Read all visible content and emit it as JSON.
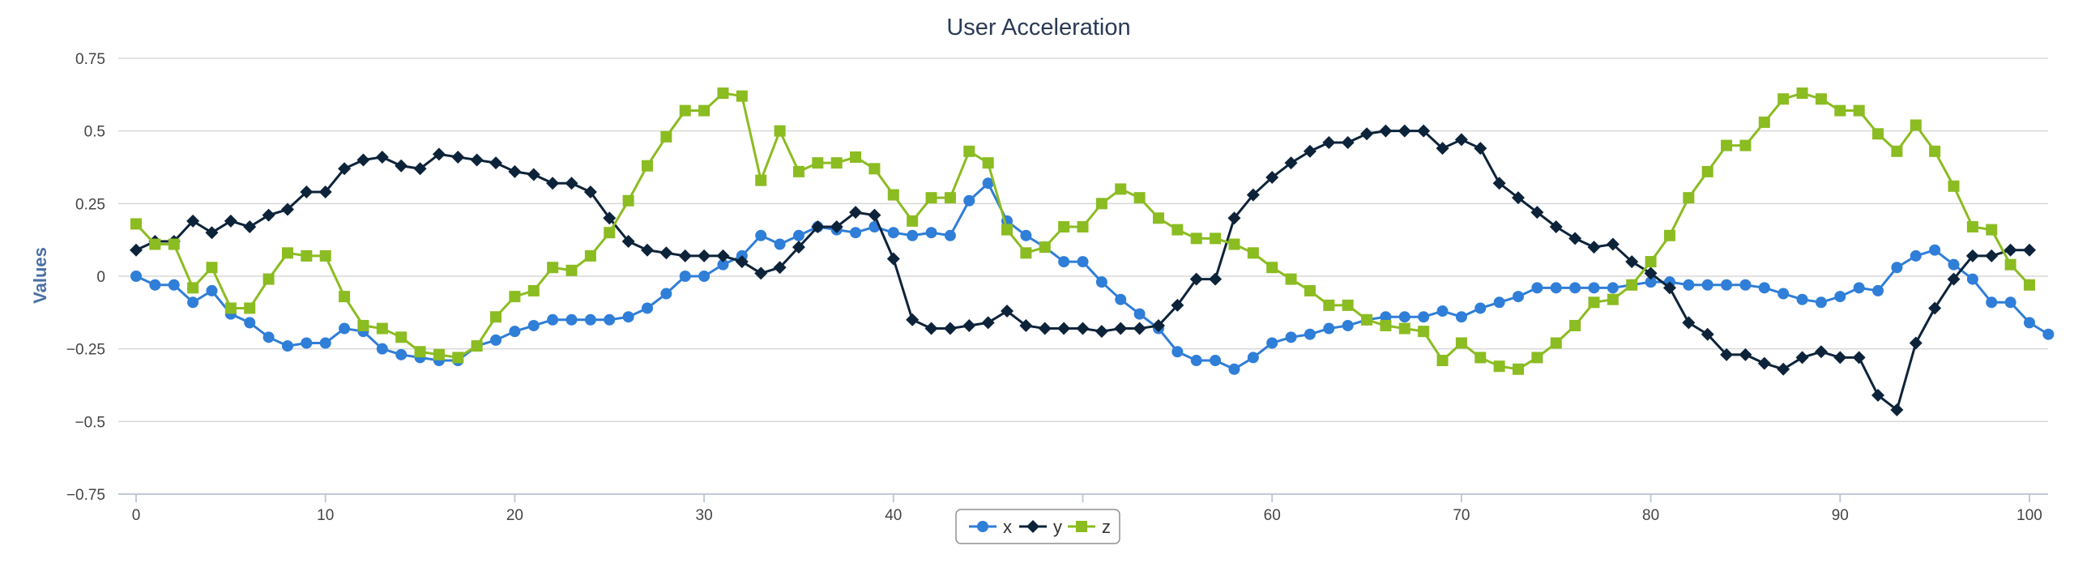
{
  "chart_data": {
    "type": "line",
    "title": "User Acceleration",
    "xlabel": "",
    "ylabel": "Values",
    "xlim": [
      0,
      100
    ],
    "ylim": [
      -0.75,
      0.75
    ],
    "x_ticks": [
      0,
      10,
      20,
      30,
      40,
      50,
      60,
      70,
      80,
      90,
      100
    ],
    "y_ticks": [
      -0.75,
      -0.5,
      -0.25,
      0,
      0.25,
      0.5,
      0.75
    ],
    "y_tick_labels": [
      "−0.75",
      "−0.5",
      "−0.25",
      "0",
      "0.25",
      "0.5",
      "0.75"
    ],
    "grid": "horizontal",
    "legend_position": "bottom-center",
    "series": [
      {
        "name": "x",
        "color": "#2f7ed8",
        "marker": "circle",
        "values": [
          0.0,
          -0.03,
          -0.03,
          -0.09,
          -0.05,
          -0.13,
          -0.16,
          -0.21,
          -0.24,
          -0.23,
          -0.23,
          -0.18,
          -0.19,
          -0.25,
          -0.27,
          -0.28,
          -0.29,
          -0.29,
          -0.24,
          -0.22,
          -0.19,
          -0.17,
          -0.15,
          -0.15,
          -0.15,
          -0.15,
          -0.14,
          -0.11,
          -0.06,
          0.0,
          0.0,
          0.04,
          0.07,
          0.14,
          0.11,
          0.14,
          0.17,
          0.16,
          0.15,
          0.17,
          0.15,
          0.14,
          0.15,
          0.14,
          0.26,
          0.32,
          0.19,
          0.14,
          0.1,
          0.05,
          0.05,
          -0.02,
          -0.08,
          -0.13,
          -0.18,
          -0.26,
          -0.29,
          -0.29,
          -0.32,
          -0.28,
          -0.23,
          -0.21,
          -0.2,
          -0.18,
          -0.17,
          -0.15,
          -0.14,
          -0.14,
          -0.14,
          -0.12,
          -0.14,
          -0.11,
          -0.09,
          -0.07,
          -0.04,
          -0.04,
          -0.04,
          -0.04,
          -0.04,
          -0.03,
          -0.02,
          -0.02,
          -0.03,
          -0.03,
          -0.03,
          -0.03,
          -0.04,
          -0.06,
          -0.08,
          -0.09,
          -0.07,
          -0.04,
          -0.05,
          0.03,
          0.07,
          0.09,
          0.04,
          -0.01,
          -0.09,
          -0.09,
          -0.16,
          -0.2
        ]
      },
      {
        "name": "y",
        "color": "#0d233a",
        "marker": "diamond",
        "values": [
          0.09,
          0.12,
          0.12,
          0.19,
          0.15,
          0.19,
          0.17,
          0.21,
          0.23,
          0.29,
          0.29,
          0.37,
          0.4,
          0.41,
          0.38,
          0.37,
          0.42,
          0.41,
          0.4,
          0.39,
          0.36,
          0.35,
          0.32,
          0.32,
          0.29,
          0.2,
          0.12,
          0.09,
          0.08,
          0.07,
          0.07,
          0.07,
          0.05,
          0.01,
          0.03,
          0.1,
          0.17,
          0.17,
          0.22,
          0.21,
          0.06,
          -0.15,
          -0.18,
          -0.18,
          -0.17,
          -0.16,
          -0.12,
          -0.17,
          -0.18,
          -0.18,
          -0.18,
          -0.19,
          -0.18,
          -0.18,
          -0.17,
          -0.1,
          -0.01,
          -0.01,
          0.2,
          0.28,
          0.34,
          0.39,
          0.43,
          0.46,
          0.46,
          0.49,
          0.5,
          0.5,
          0.5,
          0.44,
          0.47,
          0.44,
          0.32,
          0.27,
          0.22,
          0.17,
          0.13,
          0.1,
          0.11,
          0.05,
          0.01,
          -0.04,
          -0.16,
          -0.2,
          -0.27,
          -0.27,
          -0.3,
          -0.32,
          -0.28,
          -0.26,
          -0.28,
          -0.28,
          -0.41,
          -0.46,
          -0.23,
          -0.11,
          -0.01,
          0.07,
          0.07,
          0.09,
          0.09
        ]
      },
      {
        "name": "z",
        "color": "#8bbc21",
        "marker": "square",
        "values": [
          0.18,
          0.11,
          0.11,
          -0.04,
          0.03,
          -0.11,
          -0.11,
          -0.01,
          0.08,
          0.07,
          0.07,
          -0.07,
          -0.17,
          -0.18,
          -0.21,
          -0.26,
          -0.27,
          -0.28,
          -0.24,
          -0.14,
          -0.07,
          -0.05,
          0.03,
          0.02,
          0.07,
          0.15,
          0.26,
          0.38,
          0.48,
          0.57,
          0.57,
          0.63,
          0.62,
          0.33,
          0.5,
          0.36,
          0.39,
          0.39,
          0.41,
          0.37,
          0.28,
          0.19,
          0.27,
          0.27,
          0.43,
          0.39,
          0.16,
          0.08,
          0.1,
          0.17,
          0.17,
          0.25,
          0.3,
          0.27,
          0.2,
          0.16,
          0.13,
          0.13,
          0.11,
          0.08,
          0.03,
          -0.01,
          -0.05,
          -0.1,
          -0.1,
          -0.15,
          -0.17,
          -0.18,
          -0.19,
          -0.29,
          -0.23,
          -0.28,
          -0.31,
          -0.32,
          -0.28,
          -0.23,
          -0.17,
          -0.09,
          -0.08,
          -0.03,
          0.05,
          0.14,
          0.27,
          0.36,
          0.45,
          0.45,
          0.53,
          0.61,
          0.63,
          0.61,
          0.57,
          0.57,
          0.49,
          0.43,
          0.52,
          0.43,
          0.31,
          0.17,
          0.16,
          0.04,
          -0.03
        ]
      }
    ]
  }
}
